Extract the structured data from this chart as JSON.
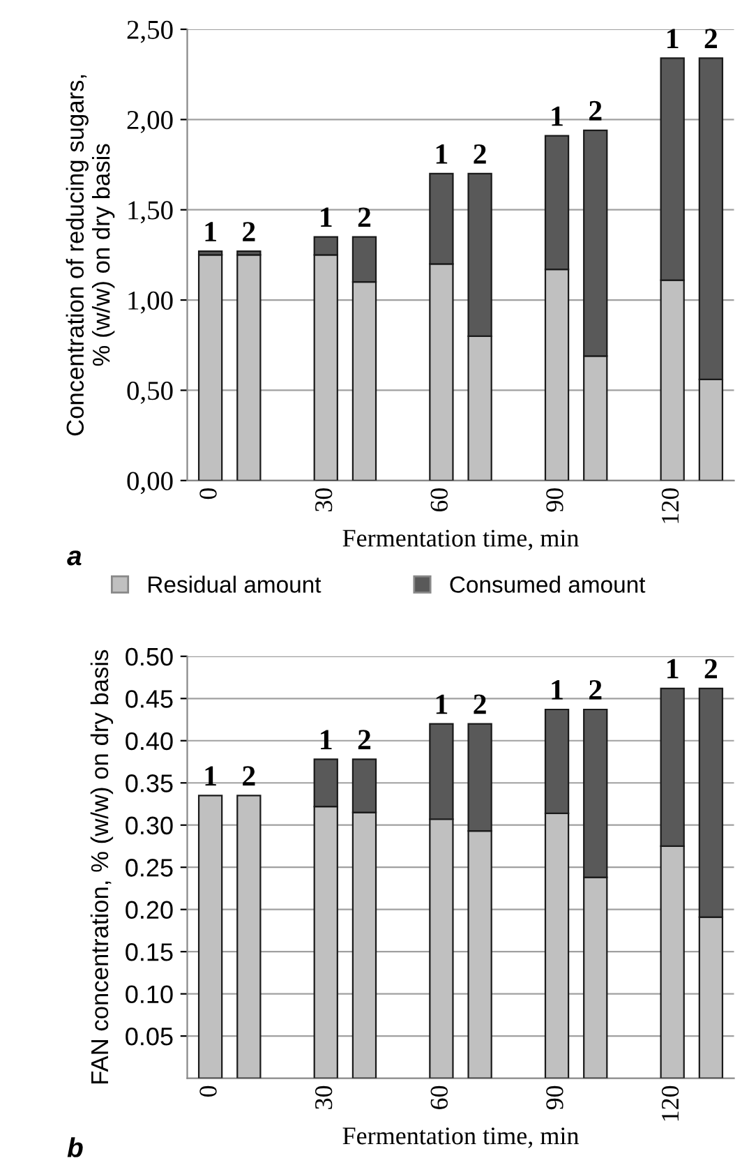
{
  "chart_data": [
    {
      "type": "bar",
      "stacked": true,
      "xlabel": "Fermentation time, min",
      "ylabel": "Concentration of reducing sugars,\n% (w/w) on dry basis",
      "categories": [
        "0",
        null,
        null,
        "30",
        null,
        null,
        "60",
        null,
        null,
        "90",
        null,
        null,
        "120",
        null
      ],
      "series": [
        {
          "color": "#c0c0c0",
          "values": [
            1.25,
            1.25,
            null,
            1.25,
            1.1,
            null,
            1.2,
            0.8,
            null,
            1.17,
            0.69,
            null,
            1.11,
            0.56
          ]
        },
        {
          "color": "#595959",
          "values": [
            0.02,
            0.02,
            null,
            0.1,
            0.25,
            null,
            0.5,
            0.9,
            null,
            0.74,
            1.25,
            null,
            1.23,
            1.78
          ]
        }
      ],
      "ylim": [
        0,
        2.5
      ],
      "yticks": [
        {
          "value": 0,
          "label": "0,00"
        },
        {
          "value": 0.5,
          "label": "0,50"
        },
        {
          "value": 1.0,
          "label": "1,00"
        },
        {
          "value": 1.5,
          "label": "1,50"
        },
        {
          "value": 2.0,
          "label": "2,00"
        },
        {
          "value": 2.5,
          "label": "2,50"
        }
      ],
      "grid": "y",
      "legend": false,
      "annotations": [
        {
          "text": "1",
          "x": "0",
          "y": 1.27
        },
        {
          "text": "2",
          "y": 1.27
        },
        {
          "text": "1",
          "x": "30",
          "y": 1.35
        },
        {
          "text": "2",
          "y": 1.35
        },
        {
          "text": "1",
          "x": "60",
          "y": 1.7
        },
        {
          "text": "2",
          "y": 1.7
        },
        {
          "text": "1",
          "x": "90",
          "y": 1.91
        },
        {
          "text": "2",
          "y": 1.94
        },
        {
          "text": "1",
          "x": "120",
          "y": 2.34
        },
        {
          "text": "2",
          "y": 2.34
        },
        "a"
      ]
    },
    {
      "type": "bar",
      "stacked": true,
      "xlabel": "Fermentation time, min",
      "ylabel": "FAN concentration, % (w/w) on dry basis",
      "categories": [
        "0",
        null,
        null,
        "30",
        null,
        null,
        "60",
        null,
        null,
        "90",
        null,
        null,
        "120",
        null
      ],
      "series": [
        {
          "name": "Residual amount",
          "color": "#c0c0c0",
          "values": [
            0.335,
            0.335,
            null,
            0.322,
            0.315,
            null,
            0.307,
            0.293,
            null,
            0.314,
            0.238,
            null,
            0.275,
            0.191
          ]
        },
        {
          "name": "Consumed amount",
          "color": "#595959",
          "values": [
            0,
            0,
            null,
            0.056,
            0.063,
            null,
            0.113,
            0.127,
            null,
            0.123,
            0.199,
            null,
            0.187,
            0.271
          ]
        }
      ],
      "ylim": [
        0,
        0.5
      ],
      "yticks": [
        {
          "value": 0.05,
          "label": "0.05"
        },
        {
          "value": 0.1,
          "label": "0.10"
        },
        {
          "value": 0.15,
          "label": "0.15"
        },
        {
          "value": 0.2,
          "label": "0.20"
        },
        {
          "value": 0.25,
          "label": "0.25"
        },
        {
          "value": 0.3,
          "label": "0.30"
        },
        {
          "value": 0.35,
          "label": "0.35"
        },
        {
          "value": 0.4,
          "label": "0.40"
        },
        {
          "value": 0.45,
          "label": "0.45"
        },
        {
          "value": 0.5,
          "label": "0.50"
        }
      ],
      "grid": "y",
      "legend": "top",
      "annotations": [
        {
          "text": "1",
          "x": "0",
          "y": 0.335
        },
        {
          "text": "2",
          "y": 0.335
        },
        {
          "text": "1",
          "x": "30",
          "y": 0.378
        },
        {
          "text": "2",
          "y": 0.378
        },
        {
          "text": "1",
          "x": "60",
          "y": 0.42
        },
        {
          "text": "2",
          "y": 0.42
        },
        {
          "text": "1",
          "x": "90",
          "y": 0.437
        },
        {
          "text": "2",
          "y": 0.437
        },
        {
          "text": "1",
          "x": "120",
          "y": 0.462
        },
        {
          "text": "2",
          "y": 0.462
        },
        "b"
      ]
    }
  ]
}
